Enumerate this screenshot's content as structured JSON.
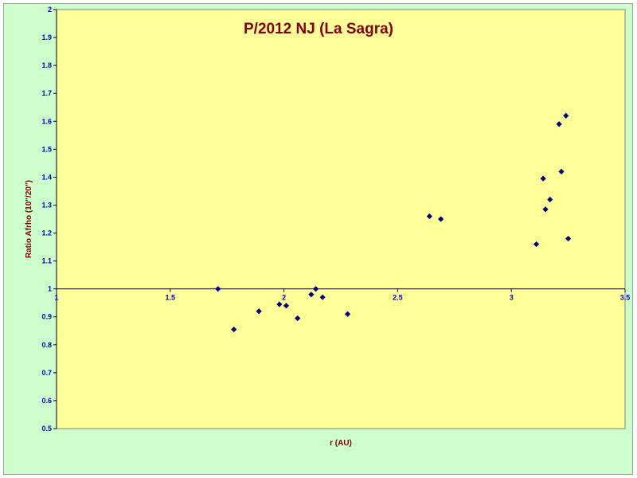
{
  "chart_data": {
    "type": "scatter",
    "title": "P/2012 NJ (La Sagra)",
    "xlabel": "r (AU)",
    "ylabel": "Ratio Afrho (10\"/20\")",
    "xlim": [
      1,
      3.5
    ],
    "ylim": [
      0.5,
      2
    ],
    "x_ticks": [
      "1",
      "1.5",
      "2",
      "2.5",
      "3",
      "3.5"
    ],
    "y_ticks": [
      "0.5",
      "0.6",
      "0.7",
      "0.8",
      "0.9",
      "1",
      "1.1",
      "1.2",
      "1.3",
      "1.4",
      "1.5",
      "1.6",
      "1.7",
      "1.8",
      "1.9",
      "2"
    ],
    "reference_line_y": 1,
    "grid": false,
    "marker": "diamond",
    "colors": {
      "plot_background": "#ffff99",
      "chart_background": "#ccffcc",
      "marker": "#000080",
      "title": "#800000",
      "axis_title": "#800000",
      "tick_labels": "#0000cc"
    },
    "series": [
      {
        "points": [
          [
            1.71,
            1.0
          ],
          [
            1.78,
            0.855
          ],
          [
            1.89,
            0.92
          ],
          [
            1.98,
            0.945
          ],
          [
            2.01,
            0.94
          ],
          [
            2.06,
            0.895
          ],
          [
            2.12,
            0.98
          ],
          [
            2.14,
            1.0
          ],
          [
            2.17,
            0.97
          ],
          [
            2.28,
            0.91
          ],
          [
            2.64,
            1.26
          ],
          [
            2.69,
            1.25
          ],
          [
            3.11,
            1.16
          ],
          [
            3.14,
            1.395
          ],
          [
            3.15,
            1.285
          ],
          [
            3.17,
            1.32
          ],
          [
            3.21,
            1.59
          ],
          [
            3.22,
            1.42
          ],
          [
            3.24,
            1.62
          ],
          [
            3.25,
            1.18
          ]
        ]
      }
    ]
  }
}
